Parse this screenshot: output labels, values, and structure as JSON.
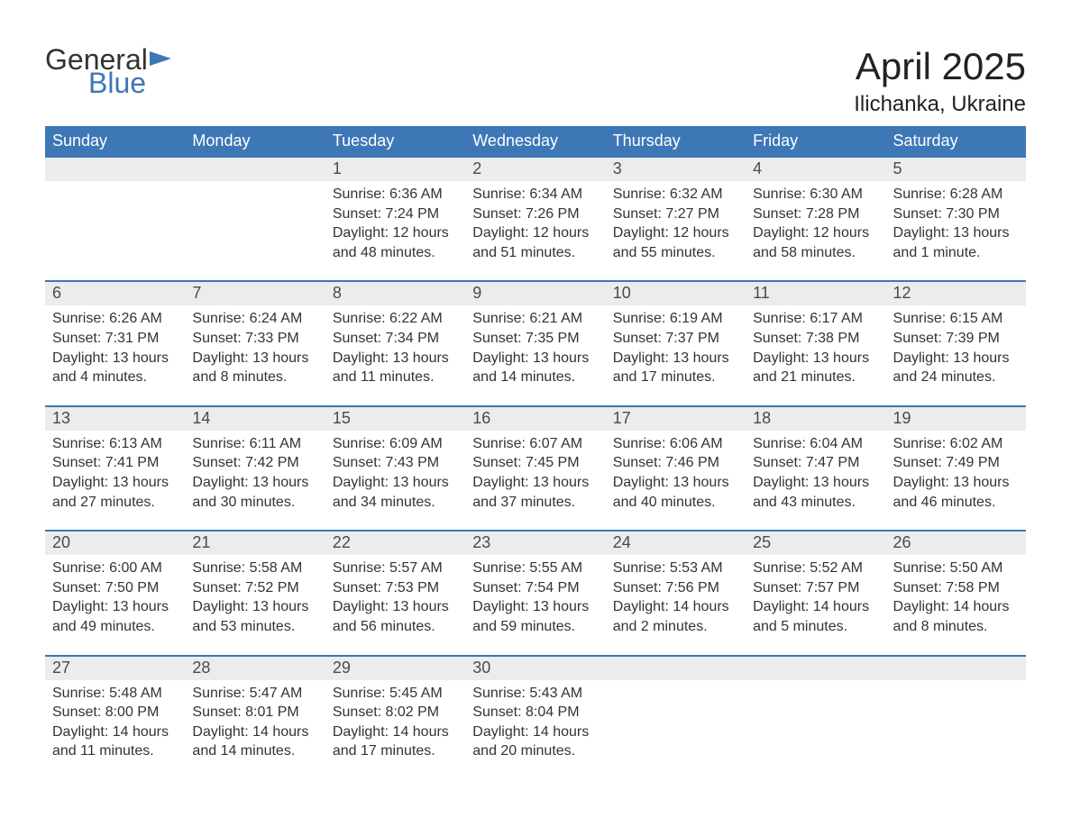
{
  "brand": {
    "general": "General",
    "blue": "Blue",
    "flag_color": "#3d77b6"
  },
  "title": {
    "month": "April 2025",
    "location": "Ilichanka, Ukraine"
  },
  "colors": {
    "header_bg": "#3d77b6",
    "header_fg": "#ffffff",
    "band_bg": "#ececec",
    "band_fg": "#4a4a4a",
    "body_fg": "#333333",
    "row_border": "#3d77b6"
  },
  "weekdays": [
    "Sunday",
    "Monday",
    "Tuesday",
    "Wednesday",
    "Thursday",
    "Friday",
    "Saturday"
  ],
  "labels": {
    "sunrise": "Sunrise: ",
    "sunset": "Sunset: ",
    "daylight": "Daylight: "
  },
  "weeks": [
    [
      {
        "day": "",
        "sunrise": "",
        "sunset": "",
        "daylight": ""
      },
      {
        "day": "",
        "sunrise": "",
        "sunset": "",
        "daylight": ""
      },
      {
        "day": "1",
        "sunrise": "6:36 AM",
        "sunset": "7:24 PM",
        "daylight": "12 hours and 48 minutes."
      },
      {
        "day": "2",
        "sunrise": "6:34 AM",
        "sunset": "7:26 PM",
        "daylight": "12 hours and 51 minutes."
      },
      {
        "day": "3",
        "sunrise": "6:32 AM",
        "sunset": "7:27 PM",
        "daylight": "12 hours and 55 minutes."
      },
      {
        "day": "4",
        "sunrise": "6:30 AM",
        "sunset": "7:28 PM",
        "daylight": "12 hours and 58 minutes."
      },
      {
        "day": "5",
        "sunrise": "6:28 AM",
        "sunset": "7:30 PM",
        "daylight": "13 hours and 1 minute."
      }
    ],
    [
      {
        "day": "6",
        "sunrise": "6:26 AM",
        "sunset": "7:31 PM",
        "daylight": "13 hours and 4 minutes."
      },
      {
        "day": "7",
        "sunrise": "6:24 AM",
        "sunset": "7:33 PM",
        "daylight": "13 hours and 8 minutes."
      },
      {
        "day": "8",
        "sunrise": "6:22 AM",
        "sunset": "7:34 PM",
        "daylight": "13 hours and 11 minutes."
      },
      {
        "day": "9",
        "sunrise": "6:21 AM",
        "sunset": "7:35 PM",
        "daylight": "13 hours and 14 minutes."
      },
      {
        "day": "10",
        "sunrise": "6:19 AM",
        "sunset": "7:37 PM",
        "daylight": "13 hours and 17 minutes."
      },
      {
        "day": "11",
        "sunrise": "6:17 AM",
        "sunset": "7:38 PM",
        "daylight": "13 hours and 21 minutes."
      },
      {
        "day": "12",
        "sunrise": "6:15 AM",
        "sunset": "7:39 PM",
        "daylight": "13 hours and 24 minutes."
      }
    ],
    [
      {
        "day": "13",
        "sunrise": "6:13 AM",
        "sunset": "7:41 PM",
        "daylight": "13 hours and 27 minutes."
      },
      {
        "day": "14",
        "sunrise": "6:11 AM",
        "sunset": "7:42 PM",
        "daylight": "13 hours and 30 minutes."
      },
      {
        "day": "15",
        "sunrise": "6:09 AM",
        "sunset": "7:43 PM",
        "daylight": "13 hours and 34 minutes."
      },
      {
        "day": "16",
        "sunrise": "6:07 AM",
        "sunset": "7:45 PM",
        "daylight": "13 hours and 37 minutes."
      },
      {
        "day": "17",
        "sunrise": "6:06 AM",
        "sunset": "7:46 PM",
        "daylight": "13 hours and 40 minutes."
      },
      {
        "day": "18",
        "sunrise": "6:04 AM",
        "sunset": "7:47 PM",
        "daylight": "13 hours and 43 minutes."
      },
      {
        "day": "19",
        "sunrise": "6:02 AM",
        "sunset": "7:49 PM",
        "daylight": "13 hours and 46 minutes."
      }
    ],
    [
      {
        "day": "20",
        "sunrise": "6:00 AM",
        "sunset": "7:50 PM",
        "daylight": "13 hours and 49 minutes."
      },
      {
        "day": "21",
        "sunrise": "5:58 AM",
        "sunset": "7:52 PM",
        "daylight": "13 hours and 53 minutes."
      },
      {
        "day": "22",
        "sunrise": "5:57 AM",
        "sunset": "7:53 PM",
        "daylight": "13 hours and 56 minutes."
      },
      {
        "day": "23",
        "sunrise": "5:55 AM",
        "sunset": "7:54 PM",
        "daylight": "13 hours and 59 minutes."
      },
      {
        "day": "24",
        "sunrise": "5:53 AM",
        "sunset": "7:56 PM",
        "daylight": "14 hours and 2 minutes."
      },
      {
        "day": "25",
        "sunrise": "5:52 AM",
        "sunset": "7:57 PM",
        "daylight": "14 hours and 5 minutes."
      },
      {
        "day": "26",
        "sunrise": "5:50 AM",
        "sunset": "7:58 PM",
        "daylight": "14 hours and 8 minutes."
      }
    ],
    [
      {
        "day": "27",
        "sunrise": "5:48 AM",
        "sunset": "8:00 PM",
        "daylight": "14 hours and 11 minutes."
      },
      {
        "day": "28",
        "sunrise": "5:47 AM",
        "sunset": "8:01 PM",
        "daylight": "14 hours and 14 minutes."
      },
      {
        "day": "29",
        "sunrise": "5:45 AM",
        "sunset": "8:02 PM",
        "daylight": "14 hours and 17 minutes."
      },
      {
        "day": "30",
        "sunrise": "5:43 AM",
        "sunset": "8:04 PM",
        "daylight": "14 hours and 20 minutes."
      },
      {
        "day": "",
        "sunrise": "",
        "sunset": "",
        "daylight": ""
      },
      {
        "day": "",
        "sunrise": "",
        "sunset": "",
        "daylight": ""
      },
      {
        "day": "",
        "sunrise": "",
        "sunset": "",
        "daylight": ""
      }
    ]
  ]
}
